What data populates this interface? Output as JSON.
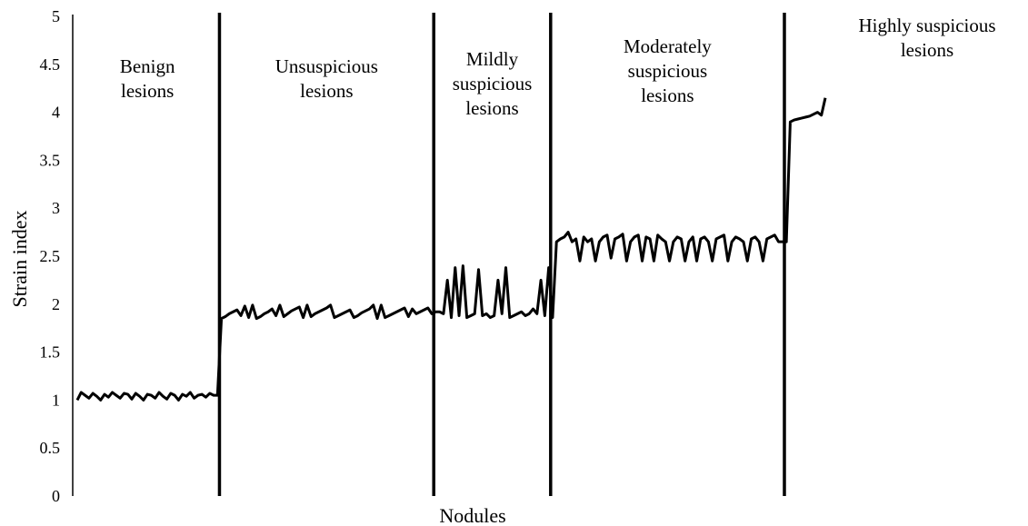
{
  "chart_data": {
    "type": "line",
    "title": "",
    "xlabel": "Nodules",
    "ylabel": "Strain index",
    "ylim": [
      0,
      5
    ],
    "y_ticks": [
      "0",
      "0.5",
      "1",
      "1.5",
      "2",
      "2.5",
      "3",
      "3.5",
      "4",
      "4.5",
      "5"
    ],
    "grid": false,
    "legend": "none",
    "regions": [
      {
        "label": [
          "Benign",
          "lesions"
        ],
        "x_range": [
          1,
          37
        ]
      },
      {
        "label": [
          "Unsuspicious",
          "lesions"
        ],
        "x_range": [
          38,
          92
        ]
      },
      {
        "label": [
          "Mildly",
          "suspicious",
          "lesions"
        ],
        "x_range": [
          93,
          122
        ]
      },
      {
        "label": [
          "Moderately",
          "suspicious",
          "lesions"
        ],
        "x_range": [
          123,
          182
        ]
      },
      {
        "label": [
          "Highly suspicious",
          "lesions"
        ],
        "x_range": [
          183,
          192
        ]
      }
    ],
    "dividers_after_x": [
      37.5,
      92.5,
      122.5,
      182.5
    ],
    "series": [
      {
        "values": [
          1.0,
          1.08,
          1.05,
          1.02,
          1.07,
          1.04,
          1.0,
          1.06,
          1.03,
          1.08,
          1.05,
          1.02,
          1.07,
          1.06,
          1.01,
          1.07,
          1.04,
          1.0,
          1.06,
          1.05,
          1.02,
          1.08,
          1.04,
          1.01,
          1.07,
          1.05,
          1.0,
          1.06,
          1.04,
          1.08,
          1.02,
          1.05,
          1.06,
          1.03,
          1.07,
          1.05,
          1.05,
          1.85,
          1.87,
          1.9,
          1.92,
          1.94,
          1.88,
          1.98,
          1.86,
          1.99,
          1.85,
          1.87,
          1.9,
          1.92,
          1.95,
          1.88,
          1.99,
          1.87,
          1.9,
          1.93,
          1.95,
          1.97,
          1.86,
          1.99,
          1.87,
          1.9,
          1.92,
          1.94,
          1.96,
          1.99,
          1.86,
          1.88,
          1.9,
          1.92,
          1.94,
          1.86,
          1.88,
          1.91,
          1.93,
          1.95,
          1.99,
          1.85,
          1.99,
          1.86,
          1.88,
          1.9,
          1.92,
          1.94,
          1.96,
          1.87,
          1.95,
          1.9,
          1.92,
          1.94,
          1.96,
          1.9,
          1.92,
          1.92,
          1.9,
          2.25,
          1.86,
          2.38,
          1.88,
          2.4,
          1.86,
          1.88,
          1.9,
          2.36,
          1.88,
          1.9,
          1.86,
          1.88,
          2.25,
          1.9,
          2.38,
          1.86,
          1.88,
          1.9,
          1.92,
          1.88,
          1.9,
          1.95,
          1.9,
          2.25,
          1.88,
          2.38,
          1.86,
          2.65,
          2.68,
          2.7,
          2.75,
          2.65,
          2.68,
          2.45,
          2.7,
          2.65,
          2.68,
          2.45,
          2.65,
          2.7,
          2.72,
          2.48,
          2.68,
          2.7,
          2.73,
          2.45,
          2.65,
          2.7,
          2.72,
          2.45,
          2.7,
          2.68,
          2.45,
          2.72,
          2.68,
          2.65,
          2.45,
          2.65,
          2.7,
          2.68,
          2.45,
          2.65,
          2.7,
          2.45,
          2.68,
          2.7,
          2.65,
          2.45,
          2.68,
          2.7,
          2.72,
          2.45,
          2.65,
          2.7,
          2.68,
          2.65,
          2.45,
          2.68,
          2.7,
          2.65,
          2.45,
          2.68,
          2.7,
          2.72,
          2.65,
          2.65,
          2.65,
          3.9,
          3.92,
          3.93,
          3.94,
          3.95,
          3.96,
          3.98,
          4.0,
          3.97,
          4.15
        ]
      }
    ]
  }
}
